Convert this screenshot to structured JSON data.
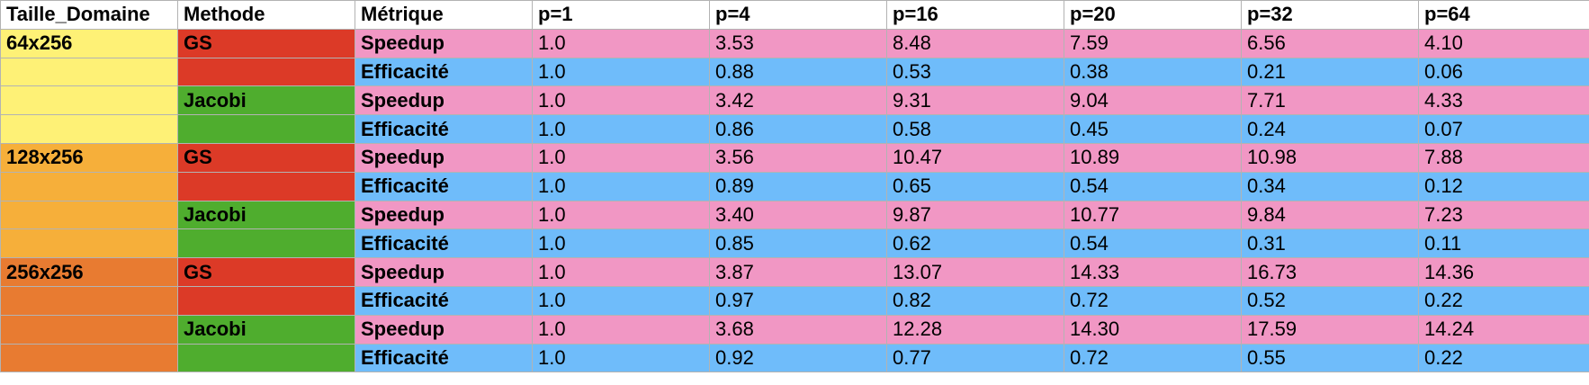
{
  "headers": [
    "Taille_Domaine",
    "Methode",
    "Métrique",
    "p=1",
    "p=4",
    "p=16",
    "p=20",
    "p=32",
    "p=64"
  ],
  "rows": [
    {
      "domain": "64x256",
      "domain_class": "dom-64",
      "method": "GS",
      "method_class": "meth-gs",
      "metric": "Speedup",
      "kind": "speedup",
      "values": [
        "1.0",
        "3.53",
        "8.48",
        "7.59",
        "6.56",
        "4.10"
      ]
    },
    {
      "domain": "",
      "domain_class": "dom-64",
      "method": "",
      "method_class": "meth-gs",
      "metric": "Efficacité",
      "kind": "eff",
      "values": [
        "1.0",
        "0.88",
        "0.53",
        "0.38",
        "0.21",
        "0.06"
      ]
    },
    {
      "domain": "",
      "domain_class": "dom-64",
      "method": "Jacobi",
      "method_class": "meth-jacobi",
      "metric": "Speedup",
      "kind": "speedup",
      "values": [
        "1.0",
        "3.42",
        "9.31",
        "9.04",
        "7.71",
        "4.33"
      ]
    },
    {
      "domain": "",
      "domain_class": "dom-64",
      "method": "",
      "method_class": "meth-jacobi",
      "metric": "Efficacité",
      "kind": "eff",
      "values": [
        "1.0",
        "0.86",
        "0.58",
        "0.45",
        "0.24",
        "0.07"
      ]
    },
    {
      "domain": "128x256",
      "domain_class": "dom-128",
      "method": "GS",
      "method_class": "meth-gs",
      "metric": "Speedup",
      "kind": "speedup",
      "values": [
        "1.0",
        "3.56",
        "10.47",
        "10.89",
        "10.98",
        "7.88"
      ]
    },
    {
      "domain": "",
      "domain_class": "dom-128",
      "method": "",
      "method_class": "meth-gs",
      "metric": "Efficacité",
      "kind": "eff",
      "values": [
        "1.0",
        "0.89",
        "0.65",
        "0.54",
        "0.34",
        "0.12"
      ]
    },
    {
      "domain": "",
      "domain_class": "dom-128",
      "method": "Jacobi",
      "method_class": "meth-jacobi",
      "metric": "Speedup",
      "kind": "speedup",
      "values": [
        "1.0",
        "3.40",
        "9.87",
        "10.77",
        "9.84",
        "7.23"
      ]
    },
    {
      "domain": "",
      "domain_class": "dom-128",
      "method": "",
      "method_class": "meth-jacobi",
      "metric": "Efficacité",
      "kind": "eff",
      "values": [
        "1.0",
        "0.85",
        "0.62",
        "0.54",
        "0.31",
        "0.11"
      ]
    },
    {
      "domain": "256x256",
      "domain_class": "dom-256",
      "method": "GS",
      "method_class": "meth-gs",
      "metric": "Speedup",
      "kind": "speedup",
      "values": [
        "1.0",
        "3.87",
        "13.07",
        "14.33",
        "16.73",
        "14.36"
      ]
    },
    {
      "domain": "",
      "domain_class": "dom-256",
      "method": "",
      "method_class": "meth-gs",
      "metric": "Efficacité",
      "kind": "eff",
      "values": [
        "1.0",
        "0.97",
        "0.82",
        "0.72",
        "0.52",
        "0.22"
      ]
    },
    {
      "domain": "",
      "domain_class": "dom-256",
      "method": "Jacobi",
      "method_class": "meth-jacobi",
      "metric": "Speedup",
      "kind": "speedup",
      "values": [
        "1.0",
        "3.68",
        "12.28",
        "14.30",
        "17.59",
        "14.24"
      ]
    },
    {
      "domain": "",
      "domain_class": "dom-256",
      "method": "",
      "method_class": "meth-jacobi",
      "metric": "Efficacité",
      "kind": "eff",
      "values": [
        "1.0",
        "0.92",
        "0.77",
        "0.72",
        "0.55",
        "0.22"
      ]
    }
  ]
}
